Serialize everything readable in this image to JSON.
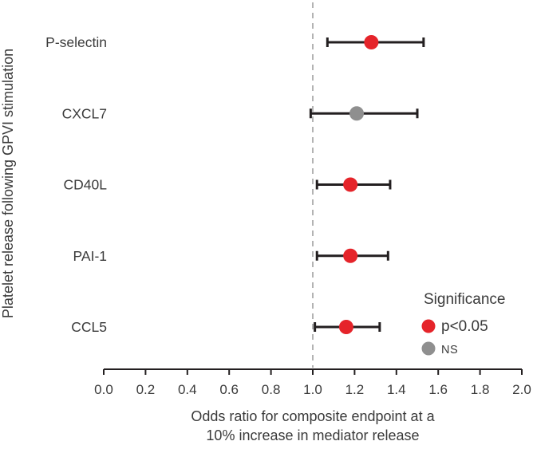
{
  "chart_data": {
    "type": "scatter",
    "subtype": "forest-plot",
    "title": "",
    "ylabel": "Platelet release following GPVI stimulation",
    "xlabel_lines": [
      "Odds ratio for composite endpoint at a",
      "10% increase in mediator release"
    ],
    "xlim": [
      0.0,
      2.0
    ],
    "x_tick_values": [
      0.0,
      0.2,
      0.4,
      0.6,
      0.8,
      1.0,
      1.2,
      1.4,
      1.6,
      1.8,
      2.0
    ],
    "x_tick_labels": [
      "0.0",
      "0.2",
      "0.4",
      "0.6",
      "0.8",
      "1.0",
      "1.2",
      "1.4",
      "1.6",
      "1.8",
      "2.0"
    ],
    "reference_line_x": 1.0,
    "grid": false,
    "categories": [
      "P-selectin",
      "CXCL7",
      "CD40L",
      "PAI-1",
      "CCL5"
    ],
    "points": [
      {
        "label": "P-selectin",
        "odds_ratio": 1.28,
        "ci_low": 1.07,
        "ci_high": 1.53,
        "significance": "p<0.05"
      },
      {
        "label": "CXCL7",
        "odds_ratio": 1.21,
        "ci_low": 0.99,
        "ci_high": 1.5,
        "significance": "NS"
      },
      {
        "label": "CD40L",
        "odds_ratio": 1.18,
        "ci_low": 1.02,
        "ci_high": 1.37,
        "significance": "p<0.05"
      },
      {
        "label": "PAI-1",
        "odds_ratio": 1.18,
        "ci_low": 1.02,
        "ci_high": 1.36,
        "significance": "p<0.05"
      },
      {
        "label": "CCL5",
        "odds_ratio": 1.16,
        "ci_low": 1.01,
        "ci_high": 1.32,
        "significance": "p<0.05"
      }
    ],
    "legend": {
      "title": "Significance",
      "position": "bottom-right",
      "items": [
        {
          "label": "p<0.05",
          "color": "#e5242a",
          "key": "significant"
        },
        {
          "label": "NS",
          "color": "#8f8f8f",
          "key": "not-significant"
        }
      ]
    },
    "colors": {
      "significant": "#e5242a",
      "not_significant": "#8f8f8f",
      "errorbar": "#231f20",
      "axis": "#231f20",
      "text": "#3a3a3a",
      "reference_line": "#b3b3b3",
      "background": "#ffffff"
    }
  }
}
